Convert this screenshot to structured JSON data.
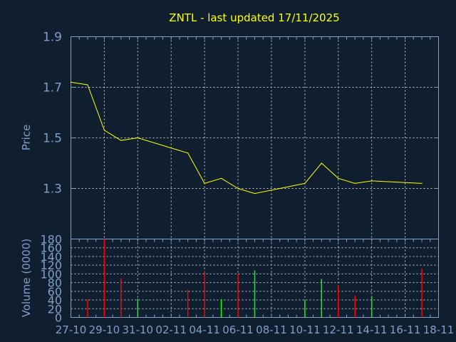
{
  "chart_data": [
    {
      "type": "line",
      "title": "ZNTL - last updated 17/11/2025",
      "ylabel": "Price",
      "ylim": [
        1.1,
        1.9
      ],
      "yticks": [
        "1.9",
        "1.7",
        "1.5",
        "1.3"
      ],
      "grid": true,
      "series": [
        {
          "color": "#ffff00",
          "x": [
            "2025-10-27",
            "2025-10-28",
            "2025-10-29",
            "2025-10-30",
            "2025-10-31",
            "2025-11-03",
            "2025-11-04",
            "2025-11-05",
            "2025-11-06",
            "2025-11-07",
            "2025-11-10",
            "2025-11-11",
            "2025-11-12",
            "2025-11-13",
            "2025-11-14",
            "2025-11-17"
          ],
          "values": [
            1.72,
            1.71,
            1.53,
            1.49,
            1.5,
            1.44,
            1.32,
            1.34,
            1.3,
            1.28,
            1.32,
            1.4,
            1.34,
            1.32,
            1.33,
            1.32
          ]
        }
      ]
    },
    {
      "type": "bar",
      "ylabel": "Volume (0000)",
      "ylim": [
        0,
        180
      ],
      "yticks": [
        "0",
        "20",
        "40",
        "60",
        "80",
        "100",
        "120",
        "140",
        "160",
        "180"
      ],
      "xlim": [
        "2025-10-27",
        "2025-11-18"
      ],
      "xticks": [
        "27-10",
        "29-10",
        "31-10",
        "02-11",
        "04-11",
        "06-11",
        "08-11",
        "10-11",
        "12-11",
        "14-11",
        "16-11",
        "18-11"
      ],
      "grid": true,
      "up_color": "#00ff00",
      "down_color": "#ff0000",
      "bars": [
        {
          "x": "2025-10-28",
          "value": 42,
          "dir": "down"
        },
        {
          "x": "2025-10-29",
          "value": 180,
          "dir": "down"
        },
        {
          "x": "2025-10-30",
          "value": 90,
          "dir": "down"
        },
        {
          "x": "2025-10-31",
          "value": 43,
          "dir": "up"
        },
        {
          "x": "2025-11-03",
          "value": 64,
          "dir": "down"
        },
        {
          "x": "2025-11-04",
          "value": 106,
          "dir": "down"
        },
        {
          "x": "2025-11-05",
          "value": 42,
          "dir": "up"
        },
        {
          "x": "2025-11-06",
          "value": 101,
          "dir": "down"
        },
        {
          "x": "2025-11-07",
          "value": 108,
          "dir": "up"
        },
        {
          "x": "2025-11-10",
          "value": 40,
          "dir": "up"
        },
        {
          "x": "2025-11-11",
          "value": 88,
          "dir": "up"
        },
        {
          "x": "2025-11-12",
          "value": 73,
          "dir": "down"
        },
        {
          "x": "2025-11-13",
          "value": 50,
          "dir": "down"
        },
        {
          "x": "2025-11-14",
          "value": 48,
          "dir": "up"
        },
        {
          "x": "2025-11-17",
          "value": 112,
          "dir": "down"
        }
      ]
    }
  ],
  "colors": {
    "background": "#0f1f30",
    "axis": "#7f9fc8",
    "grid": "#c8c8c8",
    "title": "#ffff00"
  }
}
